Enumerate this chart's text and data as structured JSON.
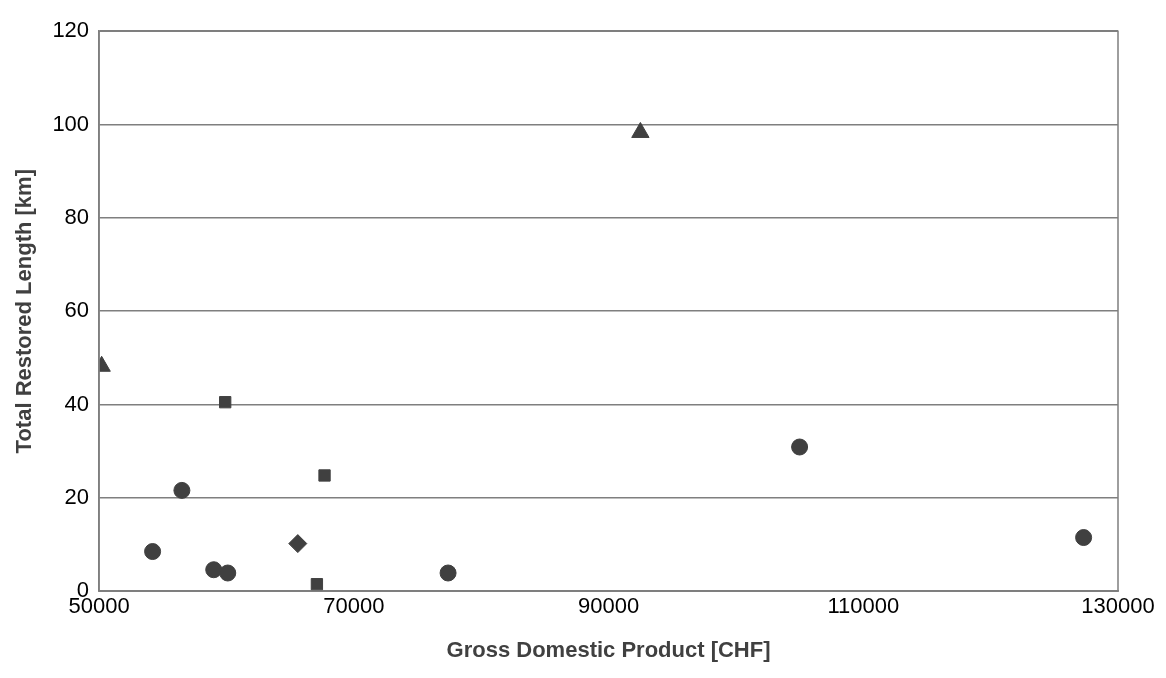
{
  "chart_data": {
    "type": "scatter",
    "xlabel": "Gross Domestic Product [CHF]",
    "ylabel": "Total Restored Length [km]",
    "xlim": [
      50000,
      130000
    ],
    "xticks": [
      50000,
      70000,
      90000,
      110000,
      130000
    ],
    "ylim": [
      0,
      120
    ],
    "yticks": [
      0,
      20,
      40,
      60,
      80,
      100,
      120
    ],
    "grid": "y",
    "legend": false,
    "series": [
      {
        "color": "#404040",
        "marker": "circle",
        "x": [
          54200,
          56500,
          59000,
          60100,
          77400,
          105000,
          127300
        ],
        "values": [
          8.5,
          21.6,
          4.6,
          3.9,
          3.9,
          30.9,
          11.5
        ]
      },
      {
        "color": "#404040",
        "marker": "square",
        "x": [
          59900,
          67700,
          67100
        ],
        "values": [
          40.5,
          24.8,
          1.5
        ]
      },
      {
        "color": "#404040",
        "marker": "triangle",
        "x": [
          50200,
          92500
        ],
        "values": [
          48.2,
          98.3
        ]
      },
      {
        "color": "#404040",
        "marker": "diamond",
        "x": [
          65600
        ],
        "values": [
          10.2
        ]
      }
    ]
  }
}
